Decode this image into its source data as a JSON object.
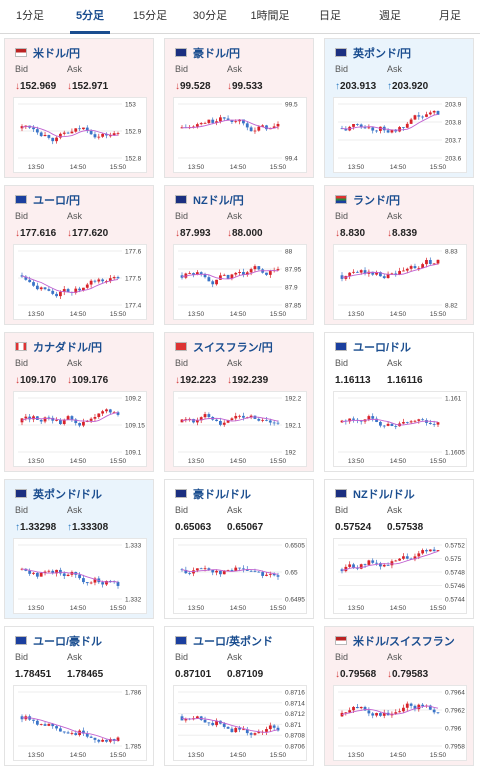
{
  "tabs": [
    {
      "label": "1分足",
      "active": false
    },
    {
      "label": "5分足",
      "active": true
    },
    {
      "label": "15分足",
      "active": false
    },
    {
      "label": "30分足",
      "active": false
    },
    {
      "label": "1時間足",
      "active": false
    },
    {
      "label": "日足",
      "active": false
    },
    {
      "label": "週足",
      "active": false
    },
    {
      "label": "月足",
      "active": false
    }
  ],
  "labels": {
    "bid": "Bid",
    "ask": "Ask"
  },
  "colors": {
    "up": "#2a7ac0",
    "down": "#d23b3b",
    "ma": "#c060d0",
    "candle_up": "#d8232a",
    "candle_down": "#3a74c8"
  },
  "cards": [
    {
      "pair": "米ドル/円",
      "trend": "down",
      "bid": "152.969",
      "ask": "152.971",
      "flag": "us",
      "chart": {
        "x_ticks": [
          "13:50",
          "14:50",
          "15:50"
        ],
        "y_ticks": [
          "153",
          "152.9",
          "152.8"
        ]
      }
    },
    {
      "pair": "豪ドル/円",
      "trend": "down",
      "bid": "99.528",
      "ask": "99.533",
      "flag": "au",
      "chart": {
        "x_ticks": [
          "13:50",
          "14:50",
          "15:50"
        ],
        "y_ticks": [
          "99.5",
          "99.4"
        ]
      }
    },
    {
      "pair": "英ポンド/円",
      "trend": "up",
      "bid": "203.913",
      "ask": "203.920",
      "flag": "gb",
      "chart": {
        "x_ticks": [
          "13:50",
          "14:50",
          "15:50"
        ],
        "y_ticks": [
          "203.9",
          "203.8",
          "203.7",
          "203.6"
        ]
      }
    },
    {
      "pair": "ユーロ/円",
      "trend": "down",
      "bid": "177.616",
      "ask": "177.620",
      "flag": "eu",
      "chart": {
        "x_ticks": [
          "13:50",
          "14:50",
          "15:50"
        ],
        "y_ticks": [
          "177.6",
          "177.5",
          "177.4"
        ]
      }
    },
    {
      "pair": "NZドル/円",
      "trend": "down",
      "bid": "87.993",
      "ask": "88.000",
      "flag": "nz",
      "chart": {
        "x_ticks": [
          "13:50",
          "14:50",
          "15:50"
        ],
        "y_ticks": [
          "88",
          "87.95",
          "87.9",
          "87.85"
        ]
      }
    },
    {
      "pair": "ランド/円",
      "trend": "down",
      "bid": "8.830",
      "ask": "8.839",
      "flag": "za",
      "chart": {
        "x_ticks": [
          "13:50",
          "14:50",
          "15:50"
        ],
        "y_ticks": [
          "8.83",
          "8.82"
        ]
      }
    },
    {
      "pair": "カナダドル/円",
      "trend": "down",
      "bid": "109.170",
      "ask": "109.176",
      "flag": "ca",
      "chart": {
        "x_ticks": [
          "13:50",
          "14:50",
          "15:50"
        ],
        "y_ticks": [
          "109.2",
          "109.15",
          "109.1"
        ]
      }
    },
    {
      "pair": "スイスフラン/円",
      "trend": "down",
      "bid": "192.223",
      "ask": "192.239",
      "flag": "ch",
      "chart": {
        "x_ticks": [
          "13:50",
          "14:50",
          "15:50"
        ],
        "y_ticks": [
          "192.2",
          "192.1",
          "192"
        ]
      }
    },
    {
      "pair": "ユーロ/ドル",
      "trend": "neutral",
      "bid": "1.16113",
      "ask": "1.16116",
      "flag": "eu",
      "chart": {
        "x_ticks": [
          "13:50",
          "14:50",
          "15:50"
        ],
        "y_ticks": [
          "1.161",
          "1.1605"
        ]
      }
    },
    {
      "pair": "英ポンド/ドル",
      "trend": "up",
      "bid": "1.33298",
      "ask": "1.33308",
      "flag": "gb",
      "chart": {
        "x_ticks": [
          "13:50",
          "14:50",
          "15:50"
        ],
        "y_ticks": [
          "1.333",
          "1.332"
        ]
      }
    },
    {
      "pair": "豪ドル/ドル",
      "trend": "neutral",
      "bid": "0.65063",
      "ask": "0.65067",
      "flag": "au",
      "chart": {
        "x_ticks": [
          "13:50",
          "14:50",
          "15:50"
        ],
        "y_ticks": [
          "0.6505",
          "0.65",
          "0.6495"
        ]
      }
    },
    {
      "pair": "NZドル/ドル",
      "trend": "neutral",
      "bid": "0.57524",
      "ask": "0.57538",
      "flag": "nz",
      "chart": {
        "x_ticks": [
          "13:50",
          "14:50",
          "15:50"
        ],
        "y_ticks": [
          "0.5752",
          "0.575",
          "0.5748",
          "0.5746",
          "0.5744"
        ]
      }
    },
    {
      "pair": "ユーロ/豪ドル",
      "trend": "neutral",
      "bid": "1.78451",
      "ask": "1.78465",
      "flag": "eu",
      "chart": {
        "x_ticks": [
          "13:50",
          "14:50",
          "15:50"
        ],
        "y_ticks": [
          "1.786",
          "1.785"
        ]
      }
    },
    {
      "pair": "ユーロ/英ポンド",
      "trend": "neutral",
      "bid": "0.87101",
      "ask": "0.87109",
      "flag": "eu",
      "chart": {
        "x_ticks": [
          "13:50",
          "14:50",
          "15:50"
        ],
        "y_ticks": [
          "0.8716",
          "0.8714",
          "0.8712",
          "0.871",
          "0.8708",
          "0.8706"
        ]
      }
    },
    {
      "pair": "米ドル/スイスフラン",
      "trend": "down",
      "bid": "0.79568",
      "ask": "0.79583",
      "flag": "us",
      "chart": {
        "x_ticks": [
          "13:50",
          "14:50",
          "15:50"
        ],
        "y_ticks": [
          "0.7964",
          "0.7962",
          "0.796",
          "0.7958"
        ]
      }
    }
  ]
}
